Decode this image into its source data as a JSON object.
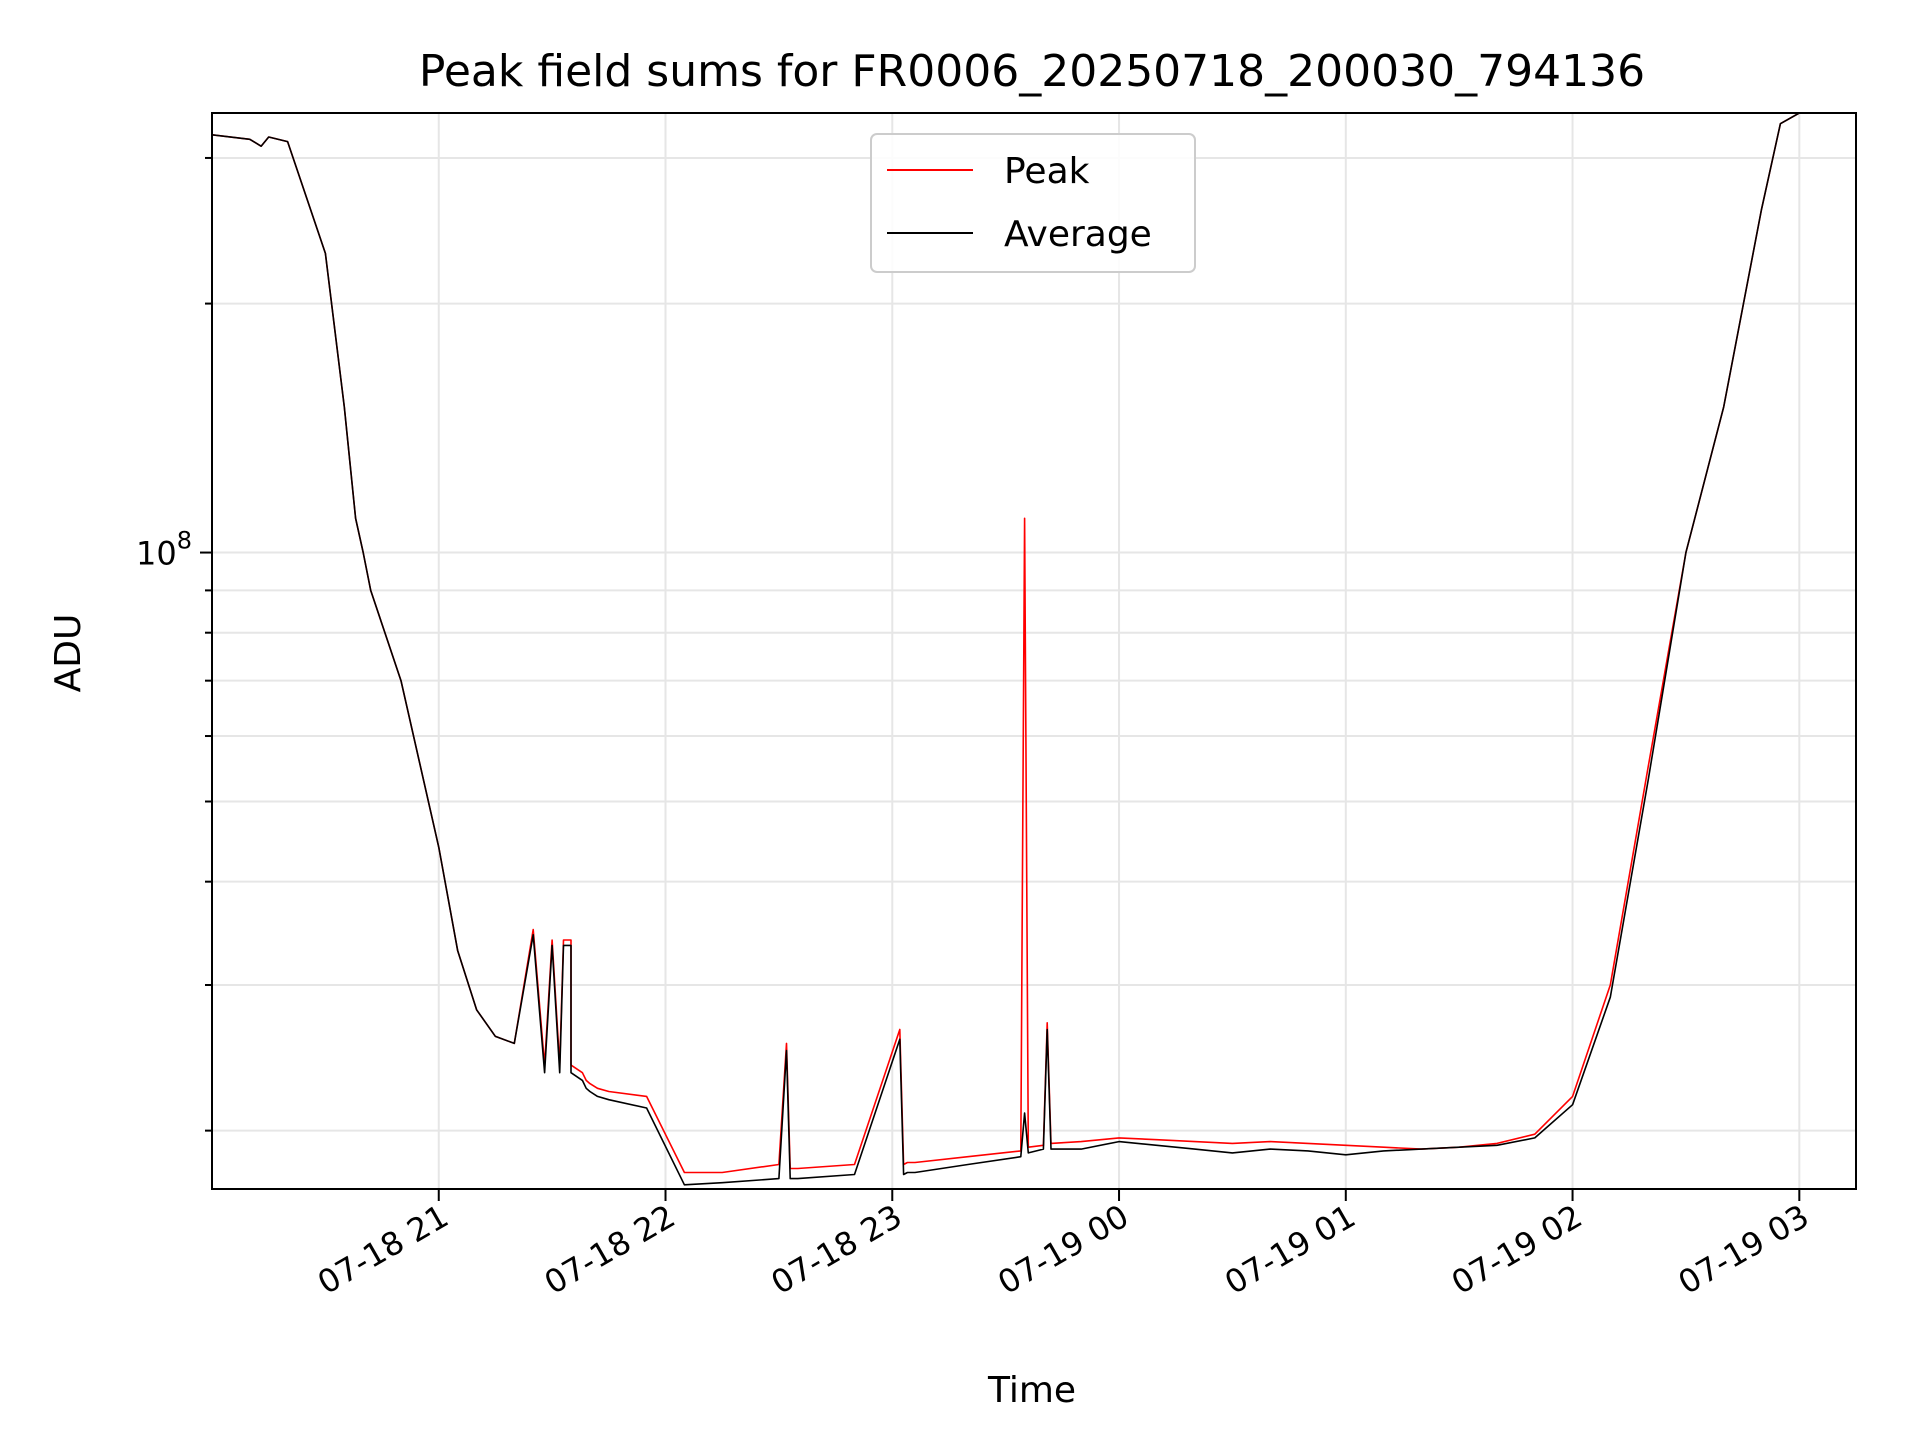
{
  "chart_data": {
    "type": "line",
    "title": "Peak field sums for FR0006_20250718_200030_794136",
    "xlabel": "Time",
    "ylabel": "ADU",
    "y_scale": "log",
    "grid": true,
    "legend_position": "top-center",
    "x_tick_labels": [
      "07-18 21",
      "07-18 22",
      "07-18 23",
      "07-19 00",
      "07-19 01",
      "07-19 02",
      "07-19 03"
    ],
    "x_tick_values": [
      "2025-07-18 21:00",
      "2025-07-18 22:00",
      "2025-07-18 23:00",
      "2025-07-19 00:00",
      "2025-07-19 01:00",
      "2025-07-19 02:00",
      "2025-07-19 03:00"
    ],
    "xlim": [
      "2025-07-18 20:00",
      "2025-07-19 03:15"
    ],
    "y_major_tick_label": "10",
    "y_major_tick_exponent": "8",
    "y_major_tick_value": 100000000,
    "ylim": [
      17000000,
      340000000
    ],
    "series": [
      {
        "name": "Peak",
        "color": "#ff0000",
        "x": [
          "2025-07-18 20:00",
          "2025-07-18 20:10",
          "2025-07-18 20:13",
          "2025-07-18 20:15",
          "2025-07-18 20:20",
          "2025-07-18 20:30",
          "2025-07-18 20:35",
          "2025-07-18 20:38",
          "2025-07-18 20:40",
          "2025-07-18 20:42",
          "2025-07-18 20:50",
          "2025-07-18 21:00",
          "2025-07-18 21:05",
          "2025-07-18 21:10",
          "2025-07-18 21:15",
          "2025-07-18 21:20",
          "2025-07-18 21:25",
          "2025-07-18 21:25",
          "2025-07-18 21:28",
          "2025-07-18 21:30",
          "2025-07-18 21:32",
          "2025-07-18 21:33",
          "2025-07-18 21:35",
          "2025-07-18 21:35",
          "2025-07-18 21:38",
          "2025-07-18 21:39",
          "2025-07-18 21:40",
          "2025-07-18 21:42",
          "2025-07-18 21:45",
          "2025-07-18 21:55",
          "2025-07-18 22:05",
          "2025-07-18 22:15",
          "2025-07-18 22:30",
          "2025-07-18 22:32",
          "2025-07-18 22:33",
          "2025-07-18 22:35",
          "2025-07-18 22:50",
          "2025-07-18 23:02",
          "2025-07-18 23:03",
          "2025-07-18 23:04",
          "2025-07-18 23:06",
          "2025-07-18 23:20",
          "2025-07-18 23:34",
          "2025-07-18 23:35",
          "2025-07-18 23:36",
          "2025-07-18 23:40",
          "2025-07-18 23:41",
          "2025-07-18 23:42",
          "2025-07-18 23:50",
          "2025-07-19 00:00",
          "2025-07-19 00:10",
          "2025-07-19 00:20",
          "2025-07-19 00:30",
          "2025-07-19 00:40",
          "2025-07-19 00:50",
          "2025-07-19 01:00",
          "2025-07-19 01:10",
          "2025-07-19 01:20",
          "2025-07-19 01:30",
          "2025-07-19 01:40",
          "2025-07-19 01:50",
          "2025-07-19 02:00",
          "2025-07-19 02:10",
          "2025-07-19 02:20",
          "2025-07-19 02:30",
          "2025-07-19 02:40",
          "2025-07-19 02:50",
          "2025-07-19 02:55",
          "2025-07-19 03:00"
        ],
        "y": [
          320000000,
          316000000,
          310000000,
          318000000,
          314000000,
          230000000,
          150000000,
          110000000,
          100000000,
          90000000,
          70000000,
          44000000,
          33000000,
          28000000,
          26000000,
          25500000,
          35000000,
          35000000,
          24000000,
          34000000,
          24000000,
          34000000,
          34000000,
          24000000,
          23500000,
          23000000,
          22800000,
          22500000,
          22300000,
          22000000,
          17800000,
          17800000,
          18200000,
          25500000,
          18000000,
          18000000,
          18200000,
          26500000,
          18200000,
          18300000,
          18300000,
          18600000,
          18900000,
          110000000,
          19100000,
          19200000,
          27000000,
          19300000,
          19400000,
          19600000,
          19500000,
          19400000,
          19300000,
          19400000,
          19300000,
          19200000,
          19100000,
          19000000,
          19100000,
          19300000,
          19800000,
          22000000,
          30000000,
          55000000,
          100000000,
          150000000,
          260000000,
          330000000,
          340000000
        ]
      },
      {
        "name": "Average",
        "color": "#000000",
        "x": [
          "2025-07-18 20:00",
          "2025-07-18 20:10",
          "2025-07-18 20:13",
          "2025-07-18 20:15",
          "2025-07-18 20:20",
          "2025-07-18 20:30",
          "2025-07-18 20:35",
          "2025-07-18 20:38",
          "2025-07-18 20:40",
          "2025-07-18 20:42",
          "2025-07-18 20:50",
          "2025-07-18 21:00",
          "2025-07-18 21:05",
          "2025-07-18 21:10",
          "2025-07-18 21:15",
          "2025-07-18 21:20",
          "2025-07-18 21:25",
          "2025-07-18 21:25",
          "2025-07-18 21:28",
          "2025-07-18 21:30",
          "2025-07-18 21:32",
          "2025-07-18 21:33",
          "2025-07-18 21:35",
          "2025-07-18 21:35",
          "2025-07-18 21:38",
          "2025-07-18 21:39",
          "2025-07-18 21:40",
          "2025-07-18 21:42",
          "2025-07-18 21:45",
          "2025-07-18 21:55",
          "2025-07-18 22:05",
          "2025-07-18 22:15",
          "2025-07-18 22:30",
          "2025-07-18 22:32",
          "2025-07-18 22:33",
          "2025-07-18 22:35",
          "2025-07-18 22:50",
          "2025-07-18 23:02",
          "2025-07-18 23:03",
          "2025-07-18 23:04",
          "2025-07-18 23:06",
          "2025-07-18 23:20",
          "2025-07-18 23:34",
          "2025-07-18 23:35",
          "2025-07-18 23:36",
          "2025-07-18 23:40",
          "2025-07-18 23:41",
          "2025-07-18 23:42",
          "2025-07-18 23:50",
          "2025-07-19 00:00",
          "2025-07-19 00:10",
          "2025-07-19 00:20",
          "2025-07-19 00:30",
          "2025-07-19 00:40",
          "2025-07-19 00:50",
          "2025-07-19 01:00",
          "2025-07-19 01:10",
          "2025-07-19 01:20",
          "2025-07-19 01:30",
          "2025-07-19 01:40",
          "2025-07-19 01:50",
          "2025-07-19 02:00",
          "2025-07-19 02:10",
          "2025-07-19 02:20",
          "2025-07-19 02:30",
          "2025-07-19 02:40",
          "2025-07-19 02:50",
          "2025-07-19 02:55",
          "2025-07-19 03:00"
        ],
        "y": [
          320000000,
          316000000,
          310000000,
          318000000,
          314000000,
          230000000,
          150000000,
          110000000,
          100000000,
          90000000,
          70000000,
          44000000,
          33000000,
          28000000,
          26000000,
          25500000,
          34500000,
          34500000,
          23500000,
          33500000,
          23500000,
          33500000,
          33500000,
          23500000,
          23000000,
          22500000,
          22300000,
          22000000,
          21800000,
          21300000,
          17200000,
          17300000,
          17500000,
          25000000,
          17500000,
          17500000,
          17700000,
          25800000,
          17700000,
          17800000,
          17800000,
          18200000,
          18600000,
          21000000,
          18800000,
          19000000,
          26500000,
          19000000,
          19000000,
          19400000,
          19200000,
          19000000,
          18800000,
          19000000,
          18900000,
          18700000,
          18900000,
          19000000,
          19100000,
          19200000,
          19600000,
          21500000,
          29000000,
          53000000,
          100000000,
          150000000,
          260000000,
          330000000,
          340000000
        ]
      }
    ]
  }
}
